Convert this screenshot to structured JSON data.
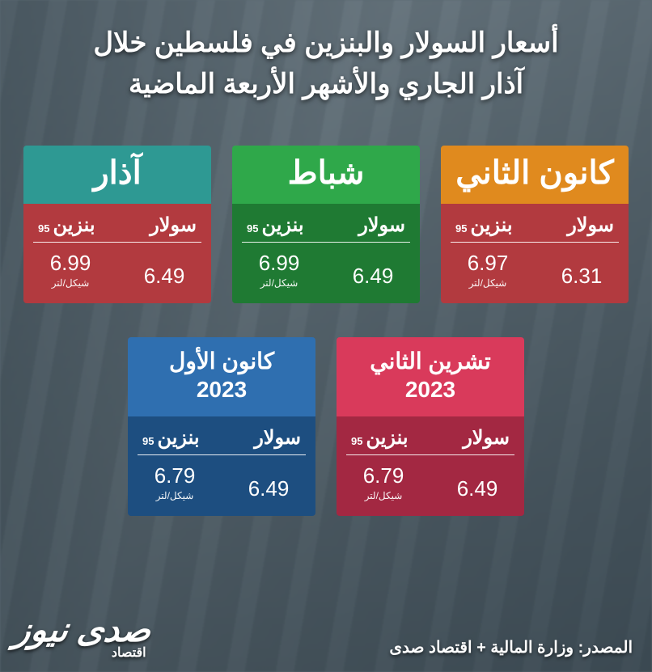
{
  "title_line1": "أسعار السولار والبنزين في فلسطين خلال",
  "title_line2": "آذار الجاري والأشهر الأربعة الماضية",
  "labels": {
    "benzine": "بنزين",
    "sub95": "95",
    "diesel": "سولار",
    "unit": "شيكل/لتر"
  },
  "cards_top": [
    {
      "month": "آذار",
      "head_bg": "#2e9993",
      "body_bg": "#b23a3f",
      "benzine": "6.99",
      "diesel": "6.49",
      "single": true
    },
    {
      "month": "شباط",
      "head_bg": "#2fa84a",
      "body_bg": "#1f7a33",
      "benzine": "6.99",
      "diesel": "6.49",
      "single": true
    },
    {
      "month": "كانون الثاني",
      "head_bg": "#e08a1e",
      "body_bg": "#b23a3f",
      "benzine": "6.97",
      "diesel": "6.31",
      "single": true
    }
  ],
  "cards_bottom": [
    {
      "month": "كانون الأول\n2023",
      "head_bg": "#2f6fb0",
      "body_bg": "#1d4e80",
      "benzine": "6.79",
      "diesel": "6.49",
      "single": false
    },
    {
      "month": "تشرين الثاني\n2023",
      "head_bg": "#d93a5b",
      "body_bg": "#a32842",
      "benzine": "6.79",
      "diesel": "6.49",
      "single": false
    }
  ],
  "source": "المصدر: وزارة المالية + اقتصاد صدى",
  "logo_main": "صدى نيوز",
  "logo_sub": "اقتصاد"
}
